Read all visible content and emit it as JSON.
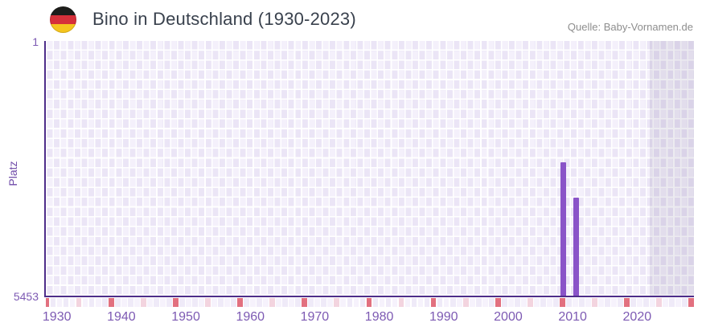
{
  "header": {
    "title": "Bino in Deutschland (1930-2023)",
    "flag": "german-flag-circle",
    "source": "Quelle: Baby-Vornamen.de"
  },
  "y_axis": {
    "label": "Platz",
    "top_tick": "1",
    "bottom_tick": "5453"
  },
  "chart_data": {
    "type": "bar",
    "title": "Bino in Deutschland (1930-2023)",
    "xlabel": "",
    "ylabel": "Platz",
    "x_range_years": [
      1930,
      2023
    ],
    "x_tick_years": [
      1930,
      1940,
      1950,
      1960,
      1970,
      1980,
      1990,
      2000,
      2010,
      2020
    ],
    "y_ticks": [
      1,
      5453
    ],
    "ylim": [
      1,
      5453
    ],
    "y_inverted": true,
    "grid": "checkerboard",
    "legend": "none",
    "points": [
      {
        "year": 2008,
        "rank": 2600
      },
      {
        "year": 2010,
        "rank": 3350
      }
    ],
    "timeline_markers": {
      "red_years": [
        1928,
        1938,
        1948,
        1958,
        1968,
        1978,
        1988,
        1998,
        2008,
        2018,
        2028
      ],
      "pink_years": [
        1933,
        1943,
        1953,
        1963,
        1973,
        1983,
        1993,
        2003,
        2013,
        2023
      ]
    },
    "recent_highlight_band": {
      "from_year": 2022
    }
  },
  "colors": {
    "bar": "#8a54c8",
    "axis_line": "#4e2d8a",
    "tick_text": "#7d5ab3",
    "marker_red": "#e2707f",
    "marker_pink": "#f3d4df",
    "marker_light_a": "#efeaf8",
    "marker_light_b": "#f6f2fc",
    "checker_light": "#f4f0fb",
    "checker_dark": "#ebe5f6"
  }
}
